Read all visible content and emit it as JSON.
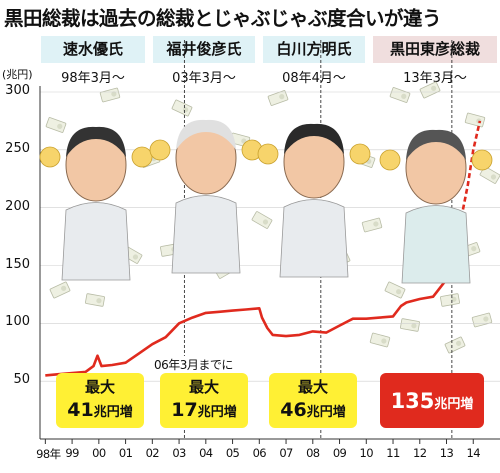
{
  "title": "黒田総裁は過去の総裁とじゃぶじゃぶ度合いが違う",
  "y_unit": "(兆円)",
  "governors": [
    {
      "name": "速水優氏",
      "start": "98年3月～",
      "max_label": "最大",
      "max_value": "41",
      "max_unit": "兆円増"
    },
    {
      "name": "福井俊彦氏",
      "start": "03年3月～",
      "max_label": "最大",
      "max_value": "17",
      "max_unit": "兆円増"
    },
    {
      "name": "白川方明氏",
      "start": "08年4月～",
      "max_label": "最大",
      "max_value": "46",
      "max_unit": "兆円増"
    },
    {
      "name": "黒田東彦総裁",
      "start": "13年3月～",
      "max_label": "",
      "max_value": "135",
      "max_unit": "兆円増"
    }
  ],
  "note": "06年3月までに",
  "colors": {
    "line": "#e02a1e",
    "header_bg": "#dff2f6",
    "header_bg_kuroda": "#f0dede",
    "badge_yellow": "#fff034",
    "badge_red": "#e02a1e"
  },
  "chart_data": {
    "type": "line",
    "ylim": [
      0,
      300
    ],
    "yticks": [
      "300",
      "250",
      "200",
      "150",
      "100",
      "50"
    ],
    "x_tick_labels": [
      "98年",
      "99",
      "00",
      "01",
      "02",
      "03",
      "04",
      "05",
      "06",
      "07",
      "08",
      "09",
      "10",
      "11",
      "12",
      "13",
      "14"
    ],
    "series": [
      {
        "x": [
          1998.0,
          1998.5,
          1999.0,
          1999.5,
          1999.8,
          1999.95,
          2000.1,
          2000.5,
          2001.0,
          2001.5,
          2002.0,
          2002.5,
          2003.0,
          2003.5,
          2004.0,
          2004.5,
          2005.0,
          2005.5,
          2006.0,
          2006.1,
          2006.3,
          2006.5,
          2007.0,
          2007.5,
          2008.0,
          2008.5,
          2009.0,
          2009.5,
          2010.0,
          2010.5,
          2011.0,
          2011.3,
          2011.5,
          2012.0,
          2012.5,
          2012.9,
          2013.0,
          2013.2,
          2013.5,
          2013.8,
          2014.0,
          2014.25
        ],
        "y": [
          55,
          56,
          57,
          58,
          63,
          72,
          63,
          64,
          66,
          74,
          82,
          88,
          100,
          105,
          109,
          110,
          111,
          112,
          113,
          105,
          96,
          90,
          89,
          90,
          93,
          92,
          98,
          104,
          104,
          105,
          106,
          115,
          118,
          121,
          123,
          135,
          138,
          150,
          185,
          220,
          250,
          275
        ]
      }
    ],
    "x_range": [
      1997.8,
      2015
    ]
  }
}
